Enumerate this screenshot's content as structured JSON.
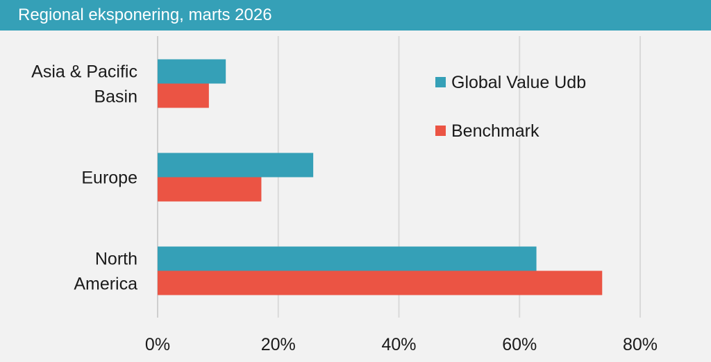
{
  "chart_data": {
    "type": "bar",
    "orientation": "horizontal",
    "title": "Regional eksponering, marts 2026",
    "categories": [
      [
        "Asia & Pacific",
        "Basin"
      ],
      [
        "Europe"
      ],
      [
        "North",
        "America"
      ]
    ],
    "series": [
      {
        "name": "Global Value Udb",
        "color": "#35a0b7",
        "values": [
          11.3,
          25.8,
          62.8
        ]
      },
      {
        "name": "Benchmark",
        "color": "#eb5444",
        "values": [
          8.5,
          17.2,
          73.7
        ]
      }
    ],
    "xlim": [
      0,
      80
    ],
    "xticks": [
      "0%",
      "20%",
      "40%",
      "60%",
      "80%"
    ],
    "grid": true,
    "legend_position": "top-right"
  }
}
